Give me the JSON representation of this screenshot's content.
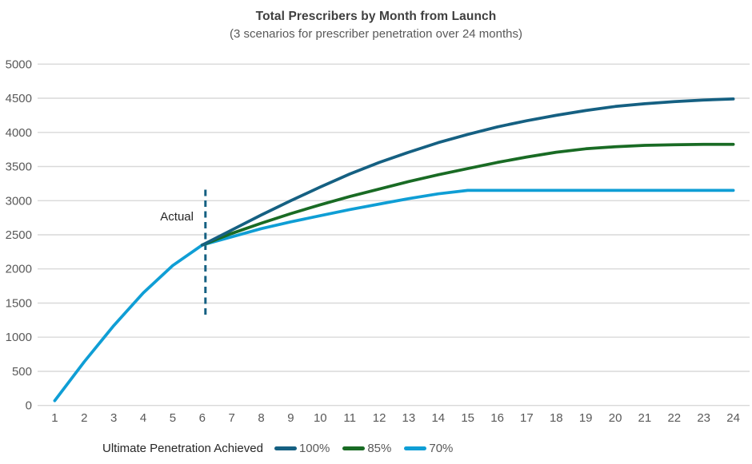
{
  "colors": {
    "accent_100": "#156082",
    "accent_85": "#196B24",
    "accent_70": "#0F9ED5",
    "gridline": "#D9D9D9",
    "tick_label": "#595959",
    "title": "#3F3F3F",
    "subtitle": "#595959",
    "annotation_text": "#262626"
  },
  "chart_data": {
    "type": "line",
    "title": "Total Prescribers by Month from Launch",
    "subtitle": "(3 scenarios for prescriber penetration over 24 months)",
    "xlabel": "",
    "ylabel": "",
    "ylim": [
      0,
      5000
    ],
    "ytick": 500,
    "grid": "horizontal",
    "x": [
      1,
      2,
      3,
      4,
      5,
      6,
      7,
      8,
      9,
      10,
      11,
      12,
      13,
      14,
      15,
      16,
      17,
      18,
      19,
      20,
      21,
      22,
      23,
      24
    ],
    "series": [
      {
        "name": "100%",
        "color": "#156082",
        "values": [
          null,
          null,
          null,
          null,
          null,
          2350,
          2570,
          2790,
          3000,
          3200,
          3390,
          3560,
          3710,
          3850,
          3970,
          4080,
          4170,
          4250,
          4320,
          4380,
          4420,
          4450,
          4475,
          4490
        ]
      },
      {
        "name": "85%",
        "color": "#196B24",
        "values": [
          null,
          null,
          null,
          null,
          null,
          2350,
          2520,
          2670,
          2810,
          2940,
          3060,
          3170,
          3280,
          3380,
          3470,
          3560,
          3640,
          3710,
          3760,
          3790,
          3810,
          3820,
          3825,
          3825
        ]
      },
      {
        "name": "70%",
        "color": "#0F9ED5",
        "values": [
          null,
          null,
          null,
          null,
          null,
          2350,
          2470,
          2590,
          2690,
          2780,
          2870,
          2950,
          3030,
          3100,
          3150,
          3150,
          3150,
          3150,
          3150,
          3150,
          3150,
          3150,
          3150,
          3150
        ]
      },
      {
        "name": "Actual",
        "color": "#0F9ED5",
        "values": [
          70,
          640,
          1170,
          1650,
          2050,
          2350,
          null,
          null,
          null,
          null,
          null,
          null,
          null,
          null,
          null,
          null,
          null,
          null,
          null,
          null,
          null,
          null,
          null,
          null
        ]
      }
    ],
    "annotation": {
      "label": "Actual"
    },
    "annotation_line": {
      "x": 6,
      "y1": 1330,
      "y2": 3165,
      "style": "dashed",
      "color": "#156082"
    },
    "legend": {
      "title": "Ultimate Penetration Achieved",
      "position": "bottom",
      "items": [
        {
          "label": "100%",
          "color": "#156082"
        },
        {
          "label": "85%",
          "color": "#196B24"
        },
        {
          "label": "70%",
          "color": "#0F9ED5"
        }
      ]
    }
  }
}
